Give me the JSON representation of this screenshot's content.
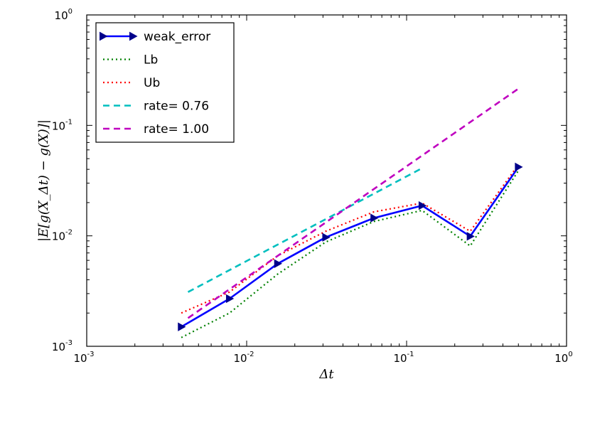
{
  "chart_data": {
    "type": "line",
    "xscale": "log",
    "yscale": "log",
    "xlim": [
      0.001,
      1
    ],
    "ylim": [
      0.001,
      1
    ],
    "xlabel": "Δt",
    "ylabel": "|E[g(X_Δt) − g(X)]|",
    "x_ticks": [
      {
        "value": 0.001,
        "base": "10",
        "exp": "-3"
      },
      {
        "value": 0.01,
        "base": "10",
        "exp": "-2"
      },
      {
        "value": 0.1,
        "base": "10",
        "exp": "-1"
      },
      {
        "value": 1,
        "base": "10",
        "exp": "0"
      }
    ],
    "y_ticks": [
      {
        "value": 0.001,
        "base": "10",
        "exp": "-3"
      },
      {
        "value": 0.01,
        "base": "10",
        "exp": "-2"
      },
      {
        "value": 0.1,
        "base": "10",
        "exp": "-1"
      },
      {
        "value": 1,
        "base": "10",
        "exp": "0"
      }
    ],
    "legend_position": "upper-left",
    "series": [
      {
        "name": "weak_error",
        "color": "#0000ff",
        "style": "solid",
        "marker": "triangle-right",
        "x": [
          0.00390625,
          0.0078125,
          0.015625,
          0.03125,
          0.0625,
          0.125,
          0.25,
          0.5
        ],
        "y": [
          0.0015,
          0.0027,
          0.0056,
          0.0097,
          0.0145,
          0.0188,
          0.0099,
          0.042
        ]
      },
      {
        "name": "Lb",
        "color": "#008000",
        "style": "dotted",
        "x": [
          0.00390625,
          0.0078125,
          0.015625,
          0.03125,
          0.0625,
          0.125,
          0.25,
          0.5
        ],
        "y": [
          0.0012,
          0.002,
          0.0045,
          0.0088,
          0.0135,
          0.017,
          0.0081,
          0.039
        ]
      },
      {
        "name": "Ub",
        "color": "#ff0000",
        "style": "dotted",
        "x": [
          0.00390625,
          0.0078125,
          0.015625,
          0.03125,
          0.0625,
          0.125,
          0.25,
          0.5
        ],
        "y": [
          0.002,
          0.0031,
          0.0066,
          0.011,
          0.0165,
          0.0198,
          0.011,
          0.044
        ]
      },
      {
        "name": "rate= 0.76",
        "color": "#00bfbf",
        "style": "dashed",
        "x": [
          0.0043,
          0.125
        ],
        "y": [
          0.0031,
          0.041
        ]
      },
      {
        "name": "rate= 1.00",
        "color": "#bf00bf",
        "style": "dashed",
        "x": [
          0.0043,
          0.5
        ],
        "y": [
          0.0018,
          0.215
        ]
      }
    ]
  }
}
